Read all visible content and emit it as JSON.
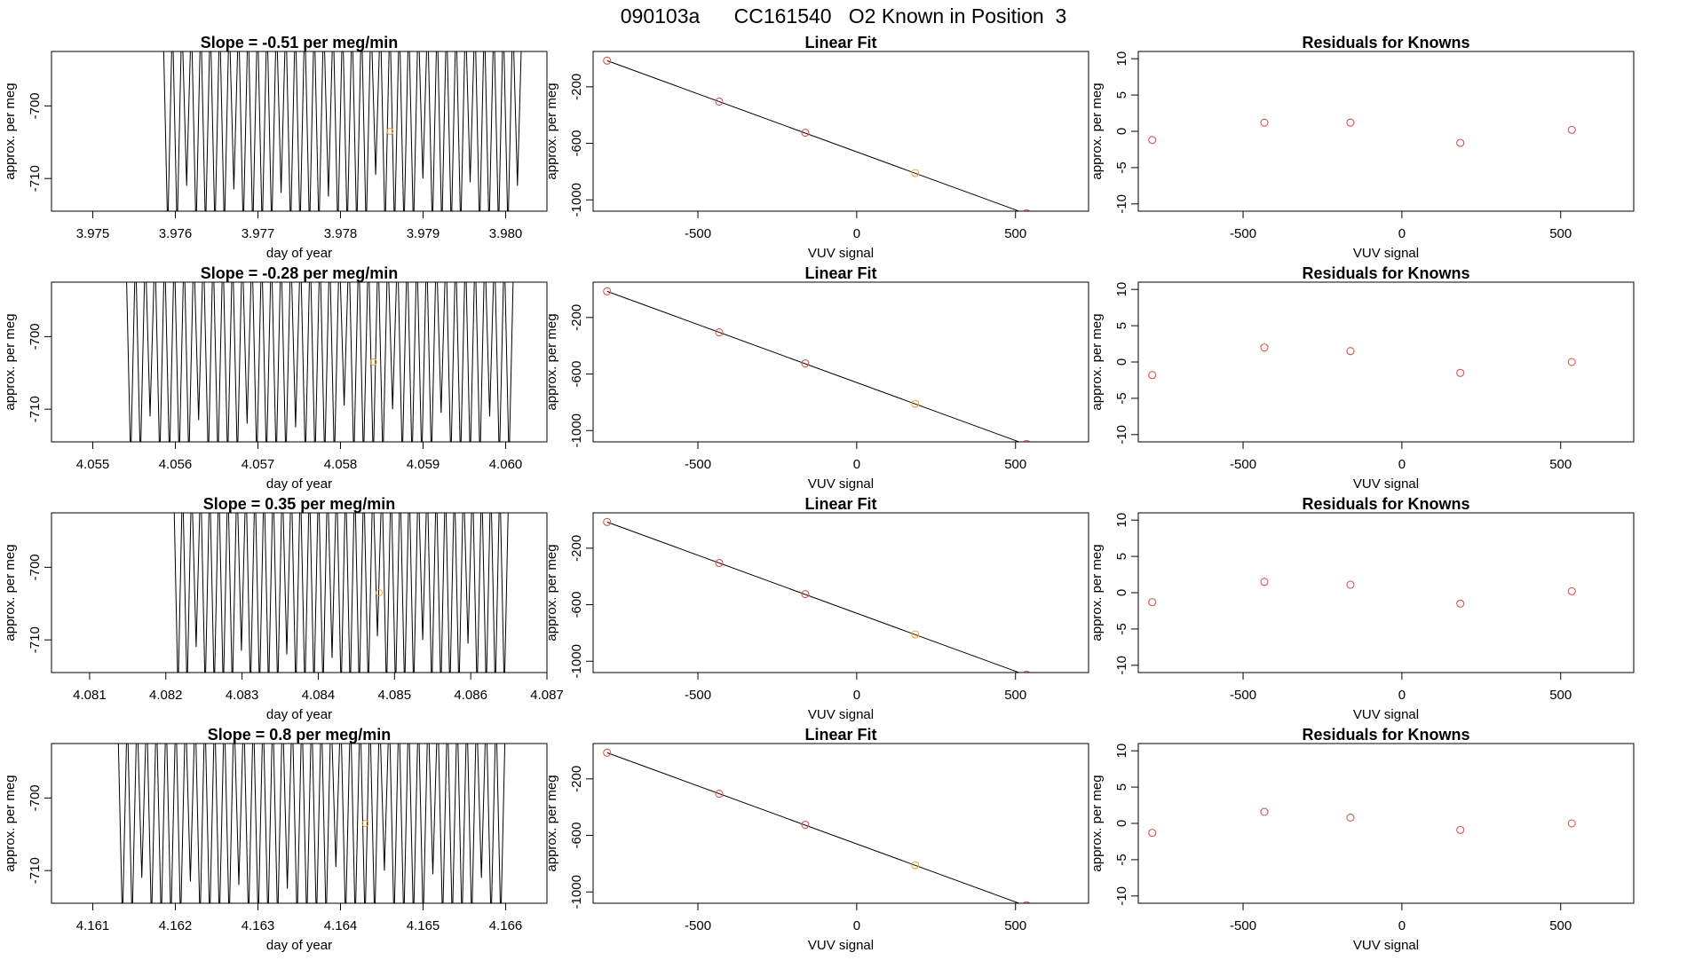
{
  "page": {
    "title": "090103a      CC161540   O2 Known in Position  3"
  },
  "colors": {
    "axis": "#000000",
    "trace": "#000000",
    "point_red": "#d9534f",
    "point_orange": "#f0a830",
    "background": "#ffffff"
  },
  "chart_data": [
    {
      "type": "line",
      "panel": "row1-trace",
      "title": "Slope =  -0.51  per meg/min",
      "xlabel": "day of year",
      "ylabel": "approx. per meg",
      "xlim": [
        3.9745,
        3.9805
      ],
      "ylim": [
        -714.5,
        -692.5
      ],
      "xticks": [
        3.975,
        3.976,
        3.977,
        3.978,
        3.979,
        3.98
      ],
      "xtick_labels": [
        "3.975",
        "3.976",
        "3.977",
        "3.978",
        "3.979",
        "3.980"
      ],
      "yticks": [
        -700,
        -710
      ],
      "ytick_labels": [
        "-700",
        "-710"
      ],
      "trace": {
        "x_start": 3.97585,
        "x_end": 3.9802,
        "cycles": 38,
        "floor": -714.5,
        "ceil": -692.5
      },
      "marker": {
        "x": 3.9786,
        "y": -703.5,
        "color": "orange"
      }
    },
    {
      "type": "scatter",
      "panel": "row1-linear-fit",
      "title": "Linear Fit",
      "xlabel": "VUV signal",
      "ylabel": "approx. per meg",
      "xlim": [
        -830,
        730
      ],
      "ylim": [
        -1080,
        50
      ],
      "xticks": [
        -500,
        0,
        500
      ],
      "xtick_labels": [
        "-500",
        "0",
        "500"
      ],
      "yticks": [
        -200,
        -600,
        -1000
      ],
      "ytick_labels": [
        "-200",
        "-600",
        "-1000"
      ],
      "points": [
        {
          "x": -786,
          "y": -15,
          "c": "red"
        },
        {
          "x": -433,
          "y": -305,
          "c": "red"
        },
        {
          "x": -162,
          "y": -525,
          "c": "red"
        },
        {
          "x": 184,
          "y": -810,
          "c": "orange"
        },
        {
          "x": 535,
          "y": -1095,
          "c": "red"
        }
      ],
      "fit_line": {
        "x": [
          -786,
          712
        ],
        "y": [
          -15,
          -1245
        ]
      }
    },
    {
      "type": "scatter",
      "panel": "row1-residuals",
      "title": "Residuals for Knowns",
      "xlabel": "VUV signal",
      "ylabel": "approx. per meg",
      "xlim": [
        -830,
        730
      ],
      "ylim": [
        -11,
        11
      ],
      "xticks": [
        -500,
        0,
        500
      ],
      "xtick_labels": [
        "-500",
        "0",
        "500"
      ],
      "yticks": [
        10,
        5,
        0,
        -5,
        -10
      ],
      "ytick_labels": [
        "10",
        "5",
        "0",
        "-5",
        "-10"
      ],
      "points": [
        {
          "x": -786,
          "y": -1.2,
          "c": "red"
        },
        {
          "x": -433,
          "y": 1.2,
          "c": "red"
        },
        {
          "x": -162,
          "y": 1.2,
          "c": "red"
        },
        {
          "x": 184,
          "y": -1.6,
          "c": "red"
        },
        {
          "x": 535,
          "y": 0.2,
          "c": "red"
        }
      ]
    },
    {
      "type": "line",
      "panel": "row2-trace",
      "title": "Slope =  -0.28  per meg/min",
      "xlabel": "day of year",
      "ylabel": "approx. per meg",
      "xlim": [
        4.0545,
        4.0605
      ],
      "ylim": [
        -714.5,
        -692.5
      ],
      "xticks": [
        4.055,
        4.056,
        4.057,
        4.058,
        4.059,
        4.06
      ],
      "xtick_labels": [
        "4.055",
        "4.056",
        "4.057",
        "4.058",
        "4.059",
        "4.060"
      ],
      "yticks": [
        -700,
        -710
      ],
      "ytick_labels": [
        "-700",
        "-710"
      ],
      "trace": {
        "x_start": 4.0554,
        "x_end": 4.0601,
        "cycles": 40,
        "floor": -714.5,
        "ceil": -692.5
      },
      "marker": {
        "x": 4.0584,
        "y": -703.5,
        "color": "orange"
      }
    },
    {
      "type": "scatter",
      "panel": "row2-linear-fit",
      "title": "Linear Fit",
      "xlabel": "VUV signal",
      "ylabel": "approx. per meg",
      "xlim": [
        -830,
        730
      ],
      "ylim": [
        -1080,
        50
      ],
      "xticks": [
        -500,
        0,
        500
      ],
      "xtick_labels": [
        "-500",
        "0",
        "500"
      ],
      "yticks": [
        -200,
        -600,
        -1000
      ],
      "ytick_labels": [
        "-200",
        "-600",
        "-1000"
      ],
      "points": [
        {
          "x": -786,
          "y": -15,
          "c": "red"
        },
        {
          "x": -433,
          "y": -305,
          "c": "red"
        },
        {
          "x": -162,
          "y": -525,
          "c": "red"
        },
        {
          "x": 184,
          "y": -810,
          "c": "orange"
        },
        {
          "x": 535,
          "y": -1095,
          "c": "red"
        }
      ],
      "fit_line": {
        "x": [
          -786,
          712
        ],
        "y": [
          -15,
          -1245
        ]
      }
    },
    {
      "type": "scatter",
      "panel": "row2-residuals",
      "title": "Residuals for Knowns",
      "xlabel": "VUV signal",
      "ylabel": "approx. per meg",
      "xlim": [
        -830,
        730
      ],
      "ylim": [
        -11,
        11
      ],
      "xticks": [
        -500,
        0,
        500
      ],
      "xtick_labels": [
        "-500",
        "0",
        "500"
      ],
      "yticks": [
        10,
        5,
        0,
        -5,
        -10
      ],
      "ytick_labels": [
        "10",
        "5",
        "0",
        "-5",
        "-10"
      ],
      "points": [
        {
          "x": -786,
          "y": -1.8,
          "c": "red"
        },
        {
          "x": -433,
          "y": 2.0,
          "c": "red"
        },
        {
          "x": -162,
          "y": 1.5,
          "c": "red"
        },
        {
          "x": 184,
          "y": -1.5,
          "c": "red"
        },
        {
          "x": 535,
          "y": 0.0,
          "c": "red"
        }
      ]
    },
    {
      "type": "line",
      "panel": "row3-trace",
      "title": "Slope =  0.35  per meg/min",
      "xlabel": "day of year",
      "ylabel": "approx. per meg",
      "xlim": [
        4.0805,
        4.087
      ],
      "ylim": [
        -714.5,
        -692.5
      ],
      "xticks": [
        4.081,
        4.082,
        4.083,
        4.084,
        4.085,
        4.086,
        4.087
      ],
      "xtick_labels": [
        "4.081",
        "4.082",
        "4.083",
        "4.084",
        "4.085",
        "4.086",
        "4.087"
      ],
      "yticks": [
        -700,
        -710
      ],
      "ytick_labels": [
        "-700",
        "-710"
      ],
      "trace": {
        "x_start": 4.0821,
        "x_end": 4.0865,
        "cycles": 37,
        "floor": -714.5,
        "ceil": -692.5
      },
      "marker": {
        "x": 4.0848,
        "y": -703.5,
        "color": "orange"
      }
    },
    {
      "type": "scatter",
      "panel": "row3-linear-fit",
      "title": "Linear Fit",
      "xlabel": "VUV signal",
      "ylabel": "approx. per meg",
      "xlim": [
        -830,
        730
      ],
      "ylim": [
        -1080,
        50
      ],
      "xticks": [
        -500,
        0,
        500
      ],
      "xtick_labels": [
        "-500",
        "0",
        "500"
      ],
      "yticks": [
        -200,
        -600,
        -1000
      ],
      "ytick_labels": [
        "-200",
        "-600",
        "-1000"
      ],
      "points": [
        {
          "x": -786,
          "y": -15,
          "c": "red"
        },
        {
          "x": -433,
          "y": -305,
          "c": "red"
        },
        {
          "x": -162,
          "y": -525,
          "c": "red"
        },
        {
          "x": 184,
          "y": -810,
          "c": "orange"
        },
        {
          "x": 535,
          "y": -1095,
          "c": "red"
        }
      ],
      "fit_line": {
        "x": [
          -786,
          712
        ],
        "y": [
          -15,
          -1245
        ]
      }
    },
    {
      "type": "scatter",
      "panel": "row3-residuals",
      "title": "Residuals for Knowns",
      "xlabel": "VUV signal",
      "ylabel": "approx. per meg",
      "xlim": [
        -830,
        730
      ],
      "ylim": [
        -11,
        11
      ],
      "xticks": [
        -500,
        0,
        500
      ],
      "xtick_labels": [
        "-500",
        "0",
        "500"
      ],
      "yticks": [
        10,
        5,
        0,
        -5,
        -10
      ],
      "ytick_labels": [
        "10",
        "5",
        "0",
        "-5",
        "-10"
      ],
      "points": [
        {
          "x": -786,
          "y": -1.3,
          "c": "red"
        },
        {
          "x": -433,
          "y": 1.5,
          "c": "red"
        },
        {
          "x": -162,
          "y": 1.1,
          "c": "red"
        },
        {
          "x": 184,
          "y": -1.5,
          "c": "red"
        },
        {
          "x": 535,
          "y": 0.2,
          "c": "red"
        }
      ]
    },
    {
      "type": "line",
      "panel": "row4-trace",
      "title": "Slope =  0.8  per meg/min",
      "xlabel": "day of year",
      "ylabel": "approx. per meg",
      "xlim": [
        4.1605,
        4.1665
      ],
      "ylim": [
        -714.5,
        -692.5
      ],
      "xticks": [
        4.161,
        4.162,
        4.163,
        4.164,
        4.165,
        4.166
      ],
      "xtick_labels": [
        "4.161",
        "4.162",
        "4.163",
        "4.164",
        "4.165",
        "4.166"
      ],
      "yticks": [
        -700,
        -710
      ],
      "ytick_labels": [
        "-700",
        "-710"
      ],
      "trace": {
        "x_start": 4.1613,
        "x_end": 4.166,
        "cycles": 40,
        "floor": -714.5,
        "ceil": -692.5
      },
      "marker": {
        "x": 4.1643,
        "y": -703.5,
        "color": "orange"
      }
    },
    {
      "type": "scatter",
      "panel": "row4-linear-fit",
      "title": "Linear Fit",
      "xlabel": "VUV signal",
      "ylabel": "approx. per meg",
      "xlim": [
        -830,
        730
      ],
      "ylim": [
        -1080,
        50
      ],
      "xticks": [
        -500,
        0,
        500
      ],
      "xtick_labels": [
        "-500",
        "0",
        "500"
      ],
      "yticks": [
        -200,
        -600,
        -1000
      ],
      "ytick_labels": [
        "-200",
        "-600",
        "-1000"
      ],
      "points": [
        {
          "x": -786,
          "y": -15,
          "c": "red"
        },
        {
          "x": -433,
          "y": -305,
          "c": "red"
        },
        {
          "x": -162,
          "y": -525,
          "c": "red"
        },
        {
          "x": 184,
          "y": -810,
          "c": "orange"
        },
        {
          "x": 535,
          "y": -1095,
          "c": "red"
        }
      ],
      "fit_line": {
        "x": [
          -786,
          712
        ],
        "y": [
          -15,
          -1245
        ]
      }
    },
    {
      "type": "scatter",
      "panel": "row4-residuals",
      "title": "Residuals for Knowns",
      "xlabel": "VUV signal",
      "ylabel": "approx. per meg",
      "xlim": [
        -830,
        730
      ],
      "ylim": [
        -11,
        11
      ],
      "xticks": [
        -500,
        0,
        500
      ],
      "xtick_labels": [
        "-500",
        "0",
        "500"
      ],
      "yticks": [
        10,
        5,
        0,
        -5,
        -10
      ],
      "ytick_labels": [
        "10",
        "5",
        "0",
        "-5",
        "-10"
      ],
      "points": [
        {
          "x": -786,
          "y": -1.3,
          "c": "red"
        },
        {
          "x": -433,
          "y": 1.6,
          "c": "red"
        },
        {
          "x": -162,
          "y": 0.8,
          "c": "red"
        },
        {
          "x": 184,
          "y": -0.9,
          "c": "red"
        },
        {
          "x": 535,
          "y": 0.0,
          "c": "red"
        }
      ]
    }
  ]
}
